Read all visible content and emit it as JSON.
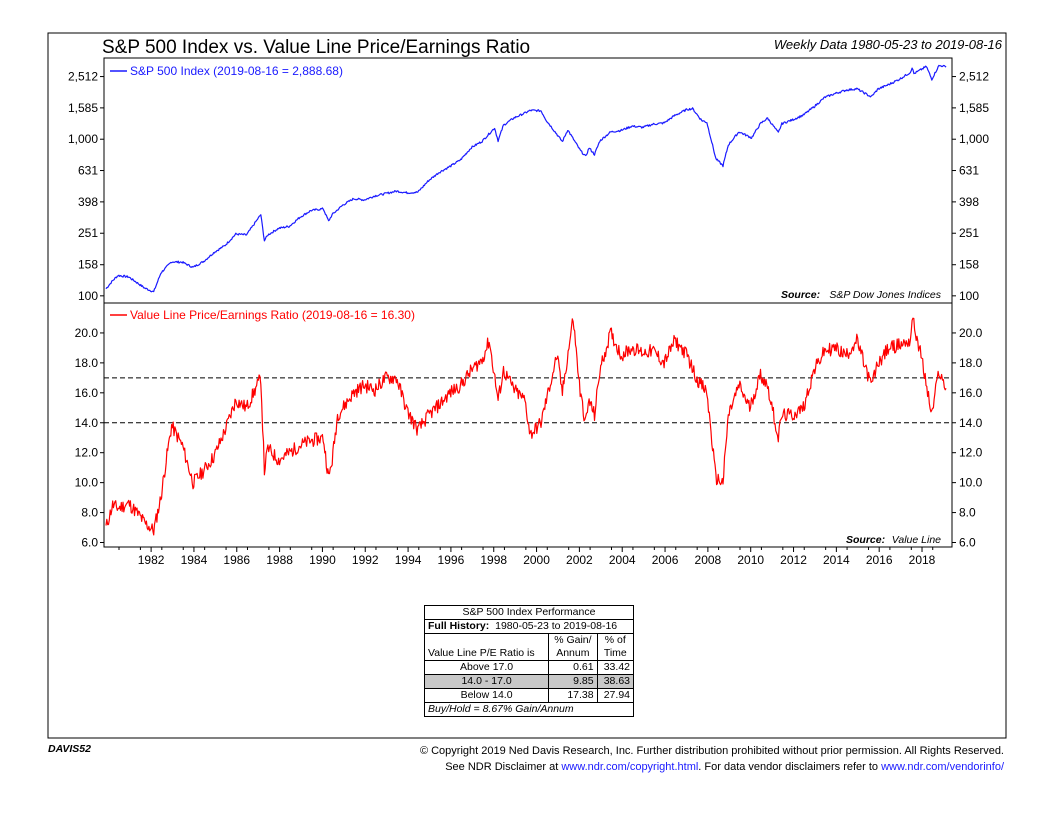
{
  "header": {
    "title": "S&P 500 Index vs. Value Line Price/Earnings Ratio",
    "subtitle": "Weekly Data 1980-05-23 to 2019-08-16"
  },
  "colors": {
    "sp500_line": "#1a1aff",
    "pe_line": "#ff0000",
    "frame": "#000000",
    "table_highlight": "#c8c8c8"
  },
  "chart_data": [
    {
      "type": "line",
      "scale": "log",
      "series": [
        {
          "name": "S&P 500 Index (2019-08-16 = 2,888.68)",
          "points": [
            [
              "1980-05-23",
              111
            ],
            [
              "1980-09",
              125
            ],
            [
              "1980-12",
              135
            ],
            [
              "1981-06",
              132
            ],
            [
              "1982-03",
              112
            ],
            [
              "1982-08",
              106
            ],
            [
              "1982-12",
              140
            ],
            [
              "1983-06",
              165
            ],
            [
              "1983-12",
              164
            ],
            [
              "1984-06",
              152
            ],
            [
              "1984-12",
              166
            ],
            [
              "1985-06",
              190
            ],
            [
              "1985-12",
              210
            ],
            [
              "1986-06",
              248
            ],
            [
              "1986-12",
              245
            ],
            [
              "1987-08",
              330
            ],
            [
              "1987-10",
              225
            ],
            [
              "1987-12",
              245
            ],
            [
              "1988-06",
              270
            ],
            [
              "1988-12",
              278
            ],
            [
              "1989-06",
              318
            ],
            [
              "1989-12",
              350
            ],
            [
              "1990-07",
              360
            ],
            [
              "1990-10",
              300
            ],
            [
              "1990-12",
              330
            ],
            [
              "1991-06",
              380
            ],
            [
              "1991-12",
              417
            ],
            [
              "1992-06",
              410
            ],
            [
              "1992-12",
              435
            ],
            [
              "1993-06",
              450
            ],
            [
              "1993-12",
              466
            ],
            [
              "1994-06",
              455
            ],
            [
              "1994-12",
              459
            ],
            [
              "1995-06",
              544
            ],
            [
              "1995-12",
              615
            ],
            [
              "1996-06",
              670
            ],
            [
              "1996-12",
              740
            ],
            [
              "1997-06",
              885
            ],
            [
              "1997-12",
              970
            ],
            [
              "1998-07",
              1180
            ],
            [
              "1998-09",
              980
            ],
            [
              "1998-12",
              1229
            ],
            [
              "1999-06",
              1370
            ],
            [
              "1999-12",
              1469
            ],
            [
              "2000-03",
              1527
            ],
            [
              "2000-09",
              1520
            ],
            [
              "2000-12",
              1320
            ],
            [
              "2001-04",
              1150
            ],
            [
              "2001-09",
              965
            ],
            [
              "2001-12",
              1148
            ],
            [
              "2002-07",
              850
            ],
            [
              "2002-10",
              776
            ],
            [
              "2002-12",
              880
            ],
            [
              "2003-03",
              800
            ],
            [
              "2003-06",
              975
            ],
            [
              "2003-12",
              1112
            ],
            [
              "2004-06",
              1140
            ],
            [
              "2004-12",
              1212
            ],
            [
              "2005-06",
              1191
            ],
            [
              "2005-12",
              1248
            ],
            [
              "2006-06",
              1270
            ],
            [
              "2006-12",
              1418
            ],
            [
              "2007-07",
              1553
            ],
            [
              "2007-10",
              1565
            ],
            [
              "2008-03",
              1320
            ],
            [
              "2008-06",
              1280
            ],
            [
              "2008-11",
              752
            ],
            [
              "2009-03",
              676
            ],
            [
              "2009-06",
              920
            ],
            [
              "2009-12",
              1115
            ],
            [
              "2010-07",
              1020
            ],
            [
              "2010-12",
              1257
            ],
            [
              "2011-04",
              1363
            ],
            [
              "2011-10",
              1100
            ],
            [
              "2011-12",
              1257
            ],
            [
              "2012-06",
              1330
            ],
            [
              "2012-12",
              1426
            ],
            [
              "2013-06",
              1610
            ],
            [
              "2013-12",
              1848
            ],
            [
              "2014-06",
              1960
            ],
            [
              "2014-12",
              2058
            ],
            [
              "2015-06",
              2100
            ],
            [
              "2016-02",
              1864
            ],
            [
              "2016-06",
              2095
            ],
            [
              "2016-12",
              2238
            ],
            [
              "2017-06",
              2420
            ],
            [
              "2017-12",
              2673
            ],
            [
              "2018-01",
              2872
            ],
            [
              "2018-02",
              2620
            ],
            [
              "2018-09",
              2913
            ],
            [
              "2018-12",
              2416
            ],
            [
              "2019-04",
              2945
            ],
            [
              "2019-06",
              2942
            ],
            [
              "2019-08-16",
              2888
            ]
          ]
        }
      ],
      "y_ticks": [
        "100",
        "158",
        "251",
        "398",
        "631",
        "1,000",
        "1,585",
        "2,512"
      ],
      "y_tick_values": [
        100,
        158,
        251,
        398,
        631,
        1000,
        1585,
        2512
      ],
      "ylim": [
        90,
        3300
      ],
      "source_label": "Source:",
      "source_text": "S&P Dow Jones Indices"
    },
    {
      "type": "line",
      "series": [
        {
          "name": "Value Line Price/Earnings Ratio (2019-08-16 = 16.30)",
          "points": [
            [
              "1980-05-23",
              7.0
            ],
            [
              "1980-09",
              8.5
            ],
            [
              "1980-12",
              8.3
            ],
            [
              "1981-06",
              8.6
            ],
            [
              "1981-12",
              7.8
            ],
            [
              "1982-03",
              7.3
            ],
            [
              "1982-08",
              6.8
            ],
            [
              "1982-12",
              9.0
            ],
            [
              "1983-03",
              11.5
            ],
            [
              "1983-06",
              13.8
            ],
            [
              "1983-12",
              12.5
            ],
            [
              "1984-06",
              10.0
            ],
            [
              "1984-12",
              10.8
            ],
            [
              "1985-06",
              11.8
            ],
            [
              "1985-12",
              13.5
            ],
            [
              "1986-06",
              15.5
            ],
            [
              "1986-12",
              15.0
            ],
            [
              "1987-08",
              17.0
            ],
            [
              "1987-10",
              10.8
            ],
            [
              "1987-12",
              12.3
            ],
            [
              "1988-06",
              11.5
            ],
            [
              "1988-12",
              12.0
            ],
            [
              "1989-06",
              12.5
            ],
            [
              "1989-12",
              12.8
            ],
            [
              "1990-07",
              13.0
            ],
            [
              "1990-10",
              10.3
            ],
            [
              "1990-12",
              11.5
            ],
            [
              "1991-03",
              14.5
            ],
            [
              "1991-06",
              15.0
            ],
            [
              "1991-12",
              16.0
            ],
            [
              "1992-06",
              16.5
            ],
            [
              "1992-12",
              16.2
            ],
            [
              "1993-06",
              17.0
            ],
            [
              "1993-12",
              17.0
            ],
            [
              "1994-06",
              14.8
            ],
            [
              "1994-12",
              13.5
            ],
            [
              "1995-06",
              14.5
            ],
            [
              "1995-12",
              15.2
            ],
            [
              "1996-06",
              16.0
            ],
            [
              "1996-12",
              16.5
            ],
            [
              "1997-06",
              17.5
            ],
            [
              "1997-12",
              18.2
            ],
            [
              "1998-04",
              19.5
            ],
            [
              "1998-09",
              15.5
            ],
            [
              "1998-12",
              17.5
            ],
            [
              "1999-06",
              16.2
            ],
            [
              "1999-12",
              15.5
            ],
            [
              "2000-03",
              13.2
            ],
            [
              "2000-09",
              14.0
            ],
            [
              "2000-12",
              15.5
            ],
            [
              "2001-06",
              18.5
            ],
            [
              "2001-09",
              16.0
            ],
            [
              "2002-03",
              21.0
            ],
            [
              "2002-07",
              16.0
            ],
            [
              "2002-10",
              14.0
            ],
            [
              "2002-12",
              15.5
            ],
            [
              "2003-03",
              14.5
            ],
            [
              "2003-06",
              17.5
            ],
            [
              "2003-12",
              20.0
            ],
            [
              "2004-06",
              18.5
            ],
            [
              "2004-12",
              19.0
            ],
            [
              "2005-06",
              18.7
            ],
            [
              "2005-12",
              18.8
            ],
            [
              "2006-06",
              18.0
            ],
            [
              "2006-12",
              19.5
            ],
            [
              "2007-07",
              18.5
            ],
            [
              "2007-12",
              17.0
            ],
            [
              "2008-06",
              16.0
            ],
            [
              "2008-11",
              10.3
            ],
            [
              "2009-03",
              10.0
            ],
            [
              "2009-06",
              14.5
            ],
            [
              "2009-12",
              16.5
            ],
            [
              "2010-06",
              15.0
            ],
            [
              "2010-12",
              17.2
            ],
            [
              "2011-04",
              16.5
            ],
            [
              "2011-10",
              13.0
            ],
            [
              "2011-12",
              14.5
            ],
            [
              "2012-06",
              14.5
            ],
            [
              "2012-12",
              15.0
            ],
            [
              "2013-06",
              17.5
            ],
            [
              "2013-12",
              18.8
            ],
            [
              "2014-06",
              19.0
            ],
            [
              "2014-12",
              18.5
            ],
            [
              "2015-06",
              19.5
            ],
            [
              "2016-02",
              16.5
            ],
            [
              "2016-06",
              18.0
            ],
            [
              "2016-12",
              19.0
            ],
            [
              "2017-06",
              19.2
            ],
            [
              "2017-12",
              19.5
            ],
            [
              "2018-01",
              21.0
            ],
            [
              "2018-06",
              18.5
            ],
            [
              "2018-12",
              14.5
            ],
            [
              "2019-04",
              17.5
            ],
            [
              "2019-06",
              16.8
            ],
            [
              "2019-08-16",
              16.3
            ]
          ]
        }
      ],
      "reference_lines": [
        17.0,
        14.0
      ],
      "y_ticks": [
        "6.0",
        "8.0",
        "10.0",
        "12.0",
        "14.0",
        "16.0",
        "18.0",
        "20.0"
      ],
      "y_tick_values": [
        6,
        8,
        10,
        12,
        14,
        16,
        18,
        20
      ],
      "ylim": [
        5.7,
        22.0
      ],
      "x_ticks": [
        "1982",
        "1984",
        "1986",
        "1988",
        "1990",
        "1992",
        "1994",
        "1996",
        "1998",
        "2000",
        "2002",
        "2004",
        "2006",
        "2008",
        "2010",
        "2012",
        "2014",
        "2016",
        "2018"
      ],
      "x_tick_values": [
        1982,
        1984,
        1986,
        1988,
        1990,
        1992,
        1994,
        1996,
        1998,
        2000,
        2002,
        2004,
        2006,
        2008,
        2010,
        2012,
        2014,
        2016,
        2018
      ],
      "xlim": [
        1980.3,
        2019.9
      ],
      "source_label": "Source:",
      "source_text": "Value Line"
    }
  ],
  "table": {
    "title": "S&P 500 Index Performance",
    "full_history_label": "Full History:",
    "full_history_range": "1980-05-23 to 2019-08-16",
    "col_header_row_label": "Value Line P/E Ratio is",
    "col1_header_line1": "% Gain/",
    "col1_header_line2": "Annum",
    "col2_header_line1": "% of",
    "col2_header_line2": "Time",
    "rows": [
      {
        "label": "Above 17.0",
        "gain": "0.61",
        "time": "33.42"
      },
      {
        "label": "14.0 - 17.0",
        "gain": "9.85",
        "time": "38.63"
      },
      {
        "label": "Below 14.0",
        "gain": "17.38",
        "time": "27.94"
      }
    ],
    "buy_hold": "Buy/Hold = 8.67% Gain/Annum"
  },
  "footer": {
    "chart_id": "DAVIS52",
    "copyright_line": "© Copyright 2019 Ned Davis Research, Inc. Further distribution prohibited without prior permission. All Rights Reserved.",
    "disclaimer_prefix": "See NDR Disclaimer at",
    "disclaimer_link1": "www.ndr.com/copyright.html",
    "disclaimer_middle": ". For data vendor disclaimers refer to",
    "disclaimer_link2": "www.ndr.com/vendorinfo/"
  }
}
